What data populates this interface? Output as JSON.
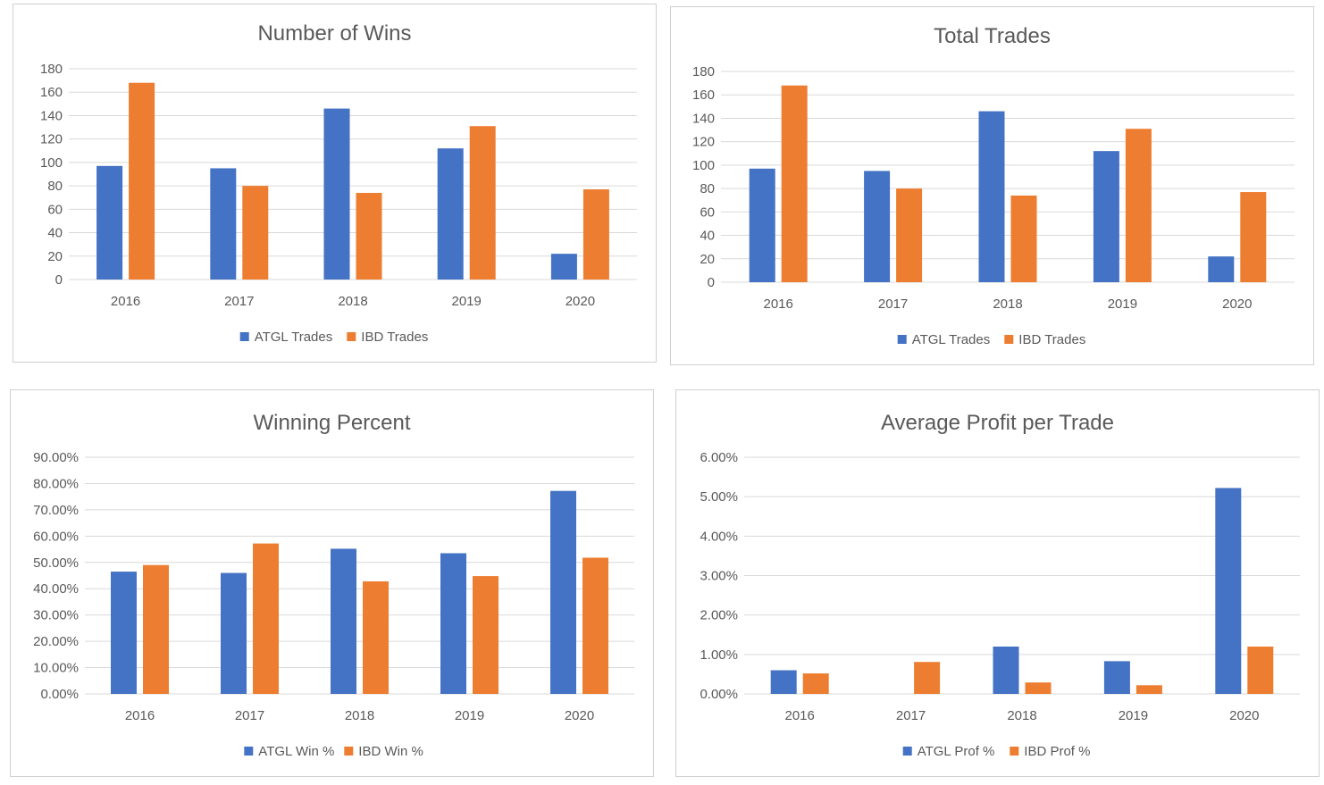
{
  "charts": [
    {
      "type": "bar",
      "title": "Number of Wins",
      "categories": [
        "2016",
        "2017",
        "2018",
        "2019",
        "2020"
      ],
      "ylim": [
        0,
        180
      ],
      "yticks": [
        "0",
        "20",
        "40",
        "60",
        "80",
        "100",
        "120",
        "140",
        "160",
        "180"
      ],
      "grid": true,
      "legend_position": "bottom",
      "series": [
        {
          "name": "ATGL Trades",
          "values": [
            97,
            95,
            146,
            112,
            22
          ]
        },
        {
          "name": "IBD Trades",
          "values": [
            168,
            80,
            74,
            131,
            77
          ]
        }
      ]
    },
    {
      "type": "bar",
      "title": "Total Trades",
      "categories": [
        "2016",
        "2017",
        "2018",
        "2019",
        "2020"
      ],
      "ylim": [
        0,
        180
      ],
      "yticks": [
        "0",
        "20",
        "40",
        "60",
        "80",
        "100",
        "120",
        "140",
        "160",
        "180"
      ],
      "grid": true,
      "legend_position": "bottom",
      "series": [
        {
          "name": "ATGL Trades",
          "values": [
            97,
            95,
            146,
            112,
            22
          ]
        },
        {
          "name": "IBD Trades",
          "values": [
            168,
            80,
            74,
            131,
            77
          ]
        }
      ]
    },
    {
      "type": "bar",
      "title": "Winning Percent",
      "categories": [
        "2016",
        "2017",
        "2018",
        "2019",
        "2020"
      ],
      "ylim": [
        0,
        0.9
      ],
      "yticks": [
        "0.00%",
        "10.00%",
        "20.00%",
        "30.00%",
        "40.00%",
        "50.00%",
        "60.00%",
        "70.00%",
        "80.00%",
        "90.00%"
      ],
      "grid": true,
      "legend_position": "bottom",
      "series": [
        {
          "name": "ATGL Win %",
          "values": [
            0.465,
            0.46,
            0.552,
            0.535,
            0.772
          ]
        },
        {
          "name": "IBD Win %",
          "values": [
            0.49,
            0.572,
            0.428,
            0.448,
            0.518
          ]
        }
      ]
    },
    {
      "type": "bar",
      "title": "Average Profit per Trade",
      "categories": [
        "2016",
        "2017",
        "2018",
        "2019",
        "2020"
      ],
      "ylim": [
        0,
        0.06
      ],
      "yticks": [
        "0.00%",
        "1.00%",
        "2.00%",
        "3.00%",
        "4.00%",
        "5.00%",
        "6.00%"
      ],
      "grid": true,
      "legend_position": "bottom",
      "series": [
        {
          "name": "ATGL Prof %",
          "values": [
            0.006,
            0.0,
            0.012,
            0.0083,
            0.0522
          ]
        },
        {
          "name": "IBD Prof %",
          "values": [
            0.0052,
            0.0081,
            0.0029,
            0.0022,
            0.012
          ]
        }
      ]
    }
  ],
  "colors": {
    "series_a": "#4472C4",
    "series_b": "#ED7D31",
    "text": "#595959",
    "grid": "#D9D9D9"
  },
  "chart_data": [
    {
      "type": "bar",
      "title": "Number of Wins",
      "categories": [
        "2016",
        "2017",
        "2018",
        "2019",
        "2020"
      ],
      "series": [
        {
          "name": "ATGL Trades",
          "values": [
            97,
            95,
            146,
            112,
            22
          ]
        },
        {
          "name": "IBD Trades",
          "values": [
            168,
            80,
            74,
            131,
            77
          ]
        }
      ],
      "ylim": [
        0,
        180
      ]
    },
    {
      "type": "bar",
      "title": "Total Trades",
      "categories": [
        "2016",
        "2017",
        "2018",
        "2019",
        "2020"
      ],
      "series": [
        {
          "name": "ATGL Trades",
          "values": [
            97,
            95,
            146,
            112,
            22
          ]
        },
        {
          "name": "IBD Trades",
          "values": [
            168,
            80,
            74,
            131,
            77
          ]
        }
      ],
      "ylim": [
        0,
        180
      ]
    },
    {
      "type": "bar",
      "title": "Winning Percent",
      "categories": [
        "2016",
        "2017",
        "2018",
        "2019",
        "2020"
      ],
      "series": [
        {
          "name": "ATGL Win %",
          "values": [
            0.465,
            0.46,
            0.552,
            0.535,
            0.772
          ]
        },
        {
          "name": "IBD Win %",
          "values": [
            0.49,
            0.572,
            0.428,
            0.448,
            0.518
          ]
        }
      ],
      "ylim": [
        0,
        0.9
      ]
    },
    {
      "type": "bar",
      "title": "Average Profit per Trade",
      "categories": [
        "2016",
        "2017",
        "2018",
        "2019",
        "2020"
      ],
      "series": [
        {
          "name": "ATGL Prof %",
          "values": [
            0.006,
            0.0,
            0.012,
            0.0083,
            0.0522
          ]
        },
        {
          "name": "IBD Prof %",
          "values": [
            0.0052,
            0.0081,
            0.0029,
            0.0022,
            0.012
          ]
        }
      ],
      "ylim": [
        0,
        0.06
      ]
    }
  ]
}
